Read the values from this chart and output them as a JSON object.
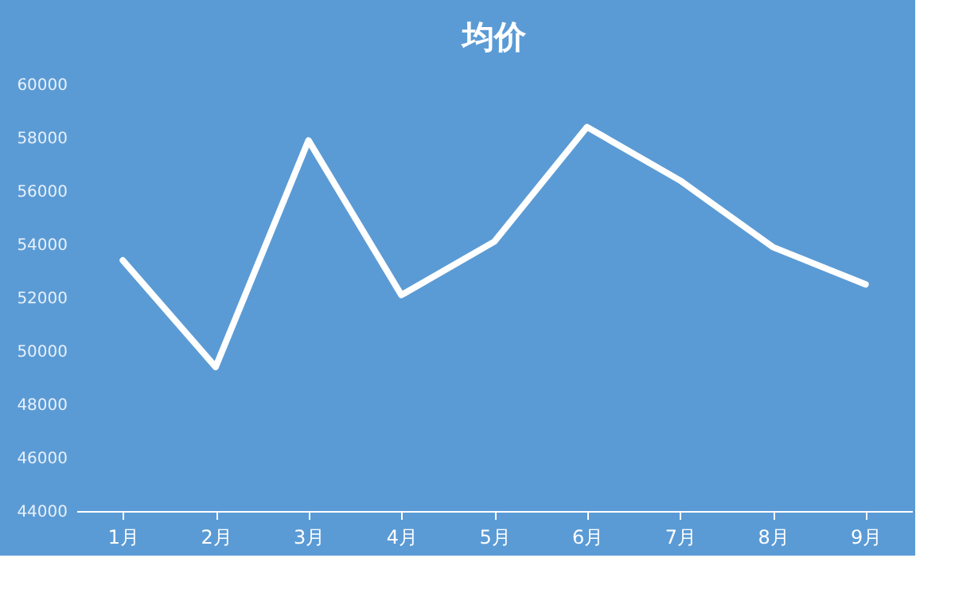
{
  "chart_data": {
    "type": "line",
    "title": "均价",
    "categories": [
      "1月",
      "2月",
      "3月",
      "4月",
      "5月",
      "6月",
      "7月",
      "8月",
      "9月"
    ],
    "series": [
      {
        "color": "#ffffff",
        "values": [
          53400,
          49400,
          57900,
          52100,
          54100,
          58400,
          56400,
          53900,
          52500
        ]
      }
    ],
    "ylim": [
      44000,
      60000
    ],
    "yticks": [
      44000,
      46000,
      48000,
      50000,
      52000,
      54000,
      56000,
      58000,
      60000
    ],
    "grid": false,
    "legend": false,
    "marker": "none",
    "line_style": "solid"
  }
}
